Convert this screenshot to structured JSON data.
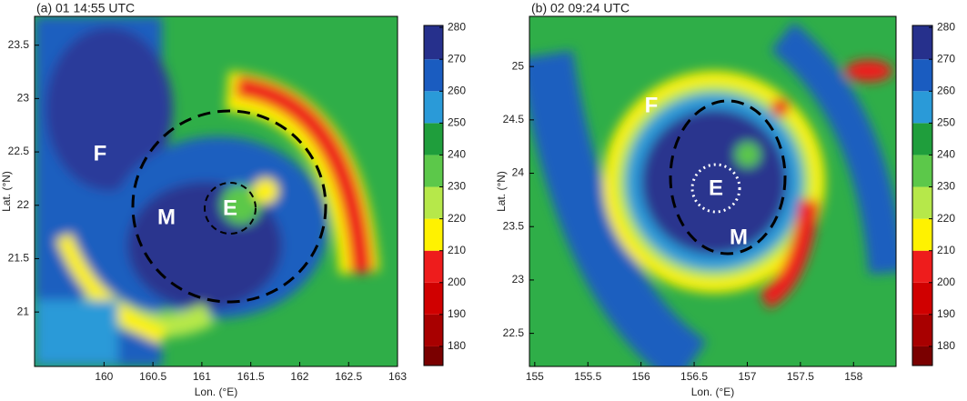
{
  "chart_data": [
    {
      "type": "heatmap",
      "title": "(a) 01 14:55 UTC",
      "x_label": "Lon. (°E)",
      "y_label": "Lat. (°N)",
      "xlim": [
        159.29,
        163.0
      ],
      "ylim": [
        20.49,
        23.77
      ],
      "xticks": [
        160,
        160.5,
        161,
        161.5,
        162,
        162.5,
        163
      ],
      "yticks": [
        21,
        21.5,
        22,
        22.5,
        23,
        23.5
      ],
      "annotations": [
        "F",
        "M",
        "E"
      ],
      "colorbar": {
        "lim": [
          174,
          280.6
        ],
        "ticks": [
          180,
          190,
          200,
          210,
          220,
          230,
          240,
          250,
          260,
          270,
          280
        ],
        "bands": [
          {
            "from": 174,
            "color": "#7a0000"
          },
          {
            "from": 180,
            "color": "#a80000"
          },
          {
            "from": 190,
            "color": "#d00000"
          },
          {
            "from": 200,
            "color": "#ee1c1c"
          },
          {
            "from": 210,
            "color": "#fff200"
          },
          {
            "from": 220,
            "color": "#b6e84a"
          },
          {
            "from": 230,
            "color": "#5cc84a"
          },
          {
            "from": 240,
            "color": "#1f9e3c"
          },
          {
            "from": 250,
            "color": "#2a9ad8"
          },
          {
            "from": 260,
            "color": "#1a5cc0"
          },
          {
            "from": 270,
            "color": "#26308c"
          }
        ]
      }
    },
    {
      "type": "heatmap",
      "title": "(b) 02 09:24 UTC",
      "x_label": "Lon. (°E)",
      "y_label": "Lat. (°N)",
      "xlim": [
        154.95,
        158.4
      ],
      "ylim": [
        22.19,
        25.47
      ],
      "xticks": [
        155,
        155.5,
        156,
        156.5,
        157,
        157.5,
        158
      ],
      "yticks": [
        22.5,
        23,
        23.5,
        24,
        24.5,
        25
      ],
      "annotations": [
        "F",
        "E",
        "M"
      ],
      "colorbar": {
        "lim": [
          174,
          280.6
        ],
        "ticks": [
          180,
          190,
          200,
          210,
          220,
          230,
          240,
          250,
          260,
          270,
          280
        ],
        "bands": [
          {
            "from": 174,
            "color": "#7a0000"
          },
          {
            "from": 180,
            "color": "#a80000"
          },
          {
            "from": 190,
            "color": "#d00000"
          },
          {
            "from": 200,
            "color": "#ee1c1c"
          },
          {
            "from": 210,
            "color": "#fff200"
          },
          {
            "from": 220,
            "color": "#b6e84a"
          },
          {
            "from": 230,
            "color": "#5cc84a"
          },
          {
            "from": 240,
            "color": "#1f9e3c"
          },
          {
            "from": 250,
            "color": "#2a9ad8"
          },
          {
            "from": 260,
            "color": "#1a5cc0"
          },
          {
            "from": 270,
            "color": "#26308c"
          }
        ]
      }
    }
  ]
}
